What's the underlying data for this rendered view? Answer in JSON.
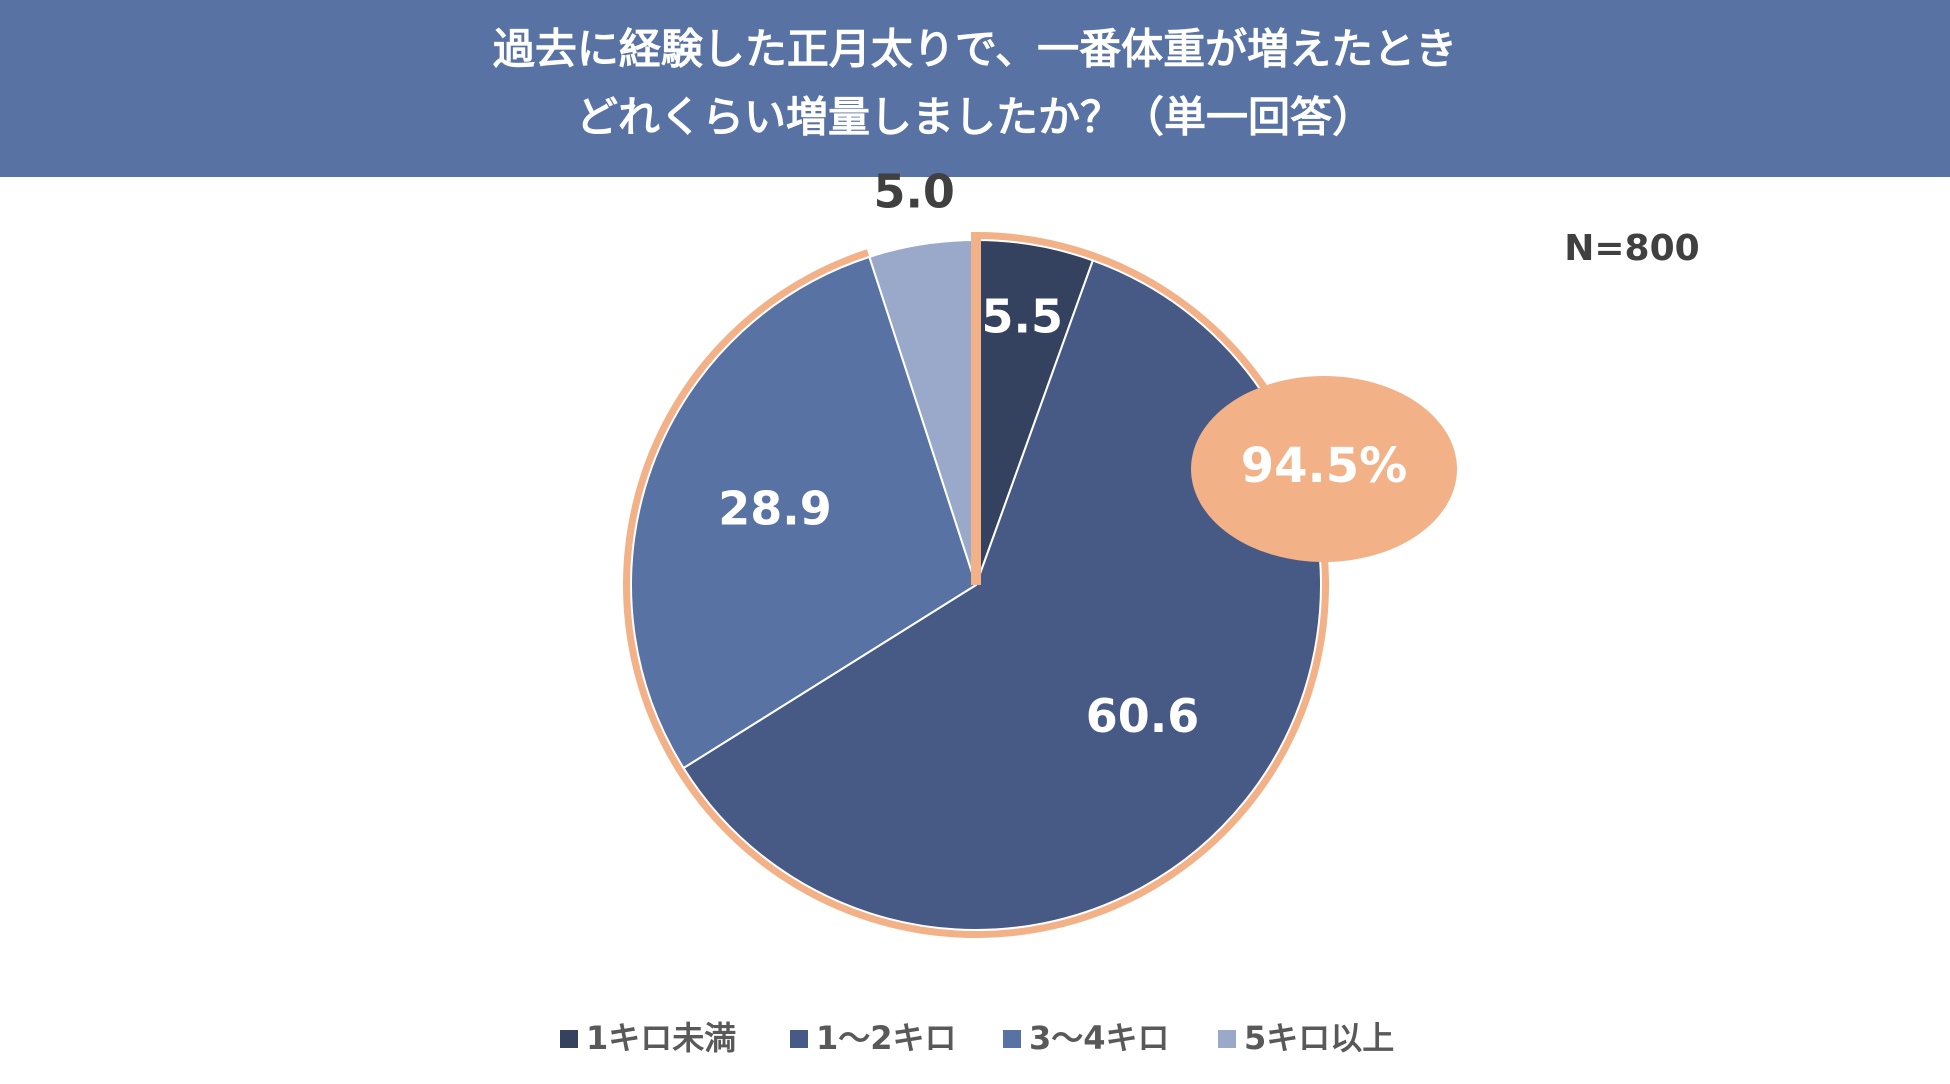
{
  "chart_data": {
    "type": "pie",
    "title": [
      "過去に経験した正月太りで、一番体重が増えたとき",
      "どれくらい増量しましたか？（単一回答）"
    ],
    "categories": [
      "1キロ未満",
      "1〜2キロ",
      "3〜4キロ",
      "5キロ以上"
    ],
    "values": [
      5.5,
      60.6,
      28.9,
      5.0
    ],
    "value_labels": [
      "5.5",
      "60.6",
      "28.9",
      "5.0"
    ],
    "colors": [
      "#34415f",
      "#475a85",
      "#5872a4",
      "#9aa9ca"
    ],
    "highlight_color": "#f2b187",
    "annotations": {
      "sample": "N=800",
      "callout": "94.5%"
    },
    "legend": "bottom"
  }
}
